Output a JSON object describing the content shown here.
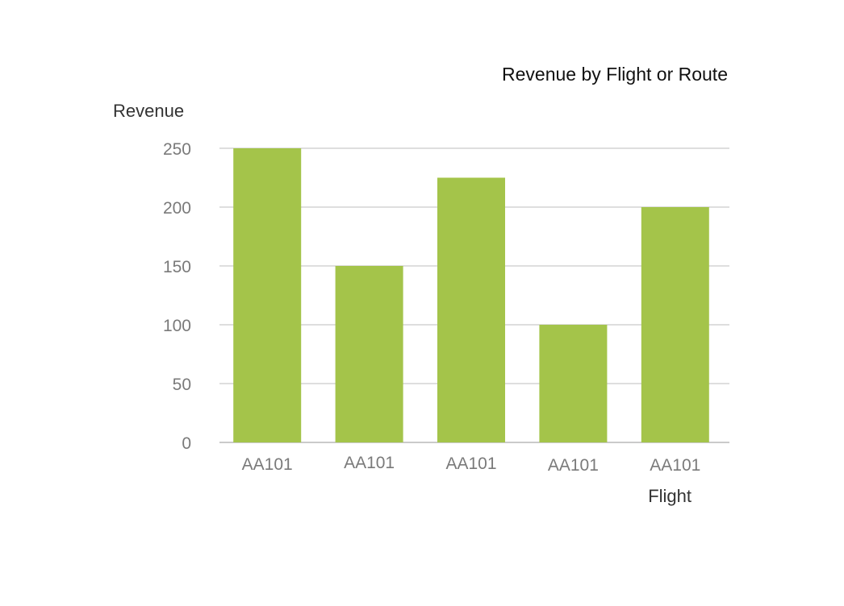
{
  "chart_data": {
    "type": "bar",
    "title": "Revenue by Flight or Route",
    "xlabel": "Flight",
    "ylabel": "Revenue",
    "categories": [
      "AA101",
      "AA101",
      "AA101",
      "AA101",
      "AA101"
    ],
    "values": [
      250,
      150,
      225,
      100,
      200
    ],
    "ylim": [
      0,
      250
    ],
    "yticks": [
      "0",
      "50",
      "100",
      "150",
      "200",
      "250"
    ],
    "ytick_values": [
      0,
      50,
      100,
      150,
      200,
      250
    ],
    "grid": true,
    "legend": "none",
    "colors": {
      "bar": "#a4c44a"
    }
  }
}
